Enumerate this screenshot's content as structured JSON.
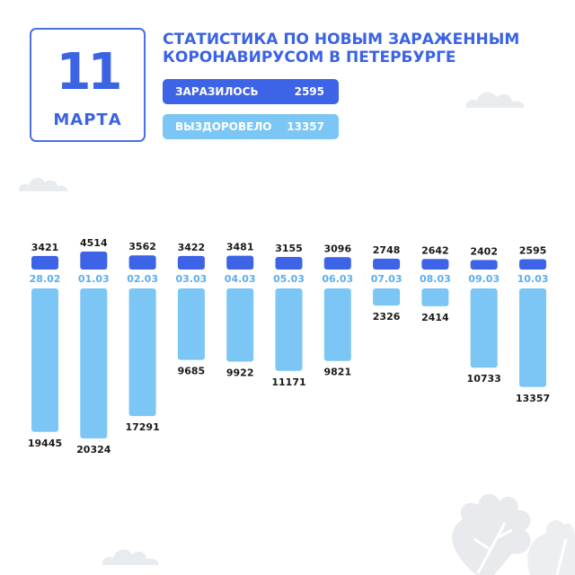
{
  "header": {
    "day": "11",
    "month": "МАРТА",
    "title_line1": "СТАТИСТИКА ПО НОВЫМ ЗАРАЖЕННЫМ",
    "title_line2": "КОРОНАВИРУСОМ В ПЕТЕРБУРГЕ"
  },
  "legend": {
    "infected": {
      "label": "ЗАРАЗИЛОСЬ",
      "value": "2595"
    },
    "recovered": {
      "label": "ВЫЗДОРОВЕЛО",
      "value": "13357"
    }
  },
  "colors": {
    "infected": "#3d63e6",
    "recovered": "#7cc6f5",
    "date_text": "#5aaef0",
    "value_text": "#1a1a1a",
    "deco": "#e9ecef"
  },
  "chart_data": {
    "type": "bar",
    "categories": [
      "28.02",
      "01.03",
      "02.03",
      "03.03",
      "04.03",
      "05.03",
      "06.03",
      "07.03",
      "08.03",
      "09.03",
      "10.03"
    ],
    "series": [
      {
        "name": "ЗАРАЗИЛОСЬ",
        "values": [
          3421,
          4514,
          3562,
          3422,
          3481,
          3155,
          3096,
          2748,
          2642,
          2402,
          2595
        ]
      },
      {
        "name": "ВЫЗДОРОВЕЛО",
        "values": [
          19445,
          20324,
          17291,
          9685,
          9922,
          11171,
          9821,
          2326,
          2414,
          10733,
          13357
        ]
      }
    ],
    "title": "СТАТИСТИКА ПО НОВЫМ ЗАРАЖЕННЫМ КОРОНАВИРУСОМ В ПЕТЕРБУРГЕ",
    "xlabel": "",
    "ylabel": "",
    "grid": false,
    "legend_position": "top"
  }
}
